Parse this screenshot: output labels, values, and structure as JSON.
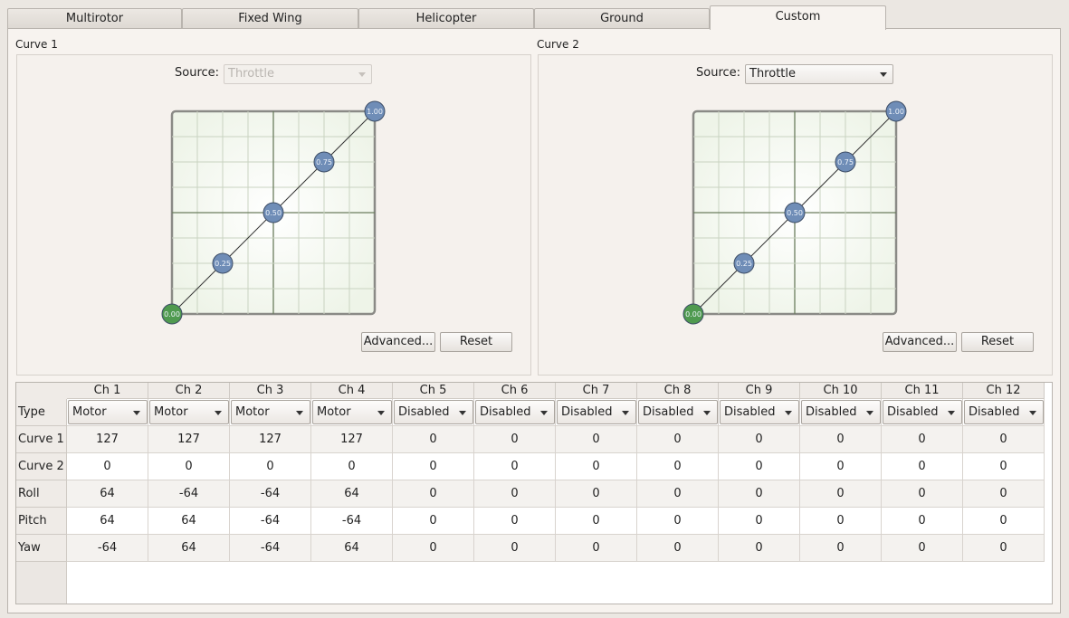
{
  "tabs": [
    "Multirotor",
    "Fixed Wing",
    "Helicopter",
    "Ground",
    "Custom"
  ],
  "active_tab": "Custom",
  "curve1": {
    "title": "Curve 1",
    "source_label": "Source:",
    "source_value": "Throttle",
    "source_enabled": false,
    "points": [
      "0.00",
      "0.25",
      "0.50",
      "0.75",
      "1.00"
    ],
    "advanced_label": "Advanced...",
    "reset_label": "Reset"
  },
  "curve2": {
    "title": "Curve 2",
    "source_label": "Source:",
    "source_value": "Throttle",
    "source_enabled": true,
    "points": [
      "0.00",
      "0.25",
      "0.50",
      "0.75",
      "1.00"
    ],
    "advanced_label": "Advanced...",
    "reset_label": "Reset"
  },
  "colors": {
    "point_blue": "#6f8db7",
    "point_green": "#4f9a4f",
    "grid_bg": "#eef4e8"
  },
  "mixer": {
    "columns": [
      "Ch 1",
      "Ch 2",
      "Ch 3",
      "Ch 4",
      "Ch 5",
      "Ch 6",
      "Ch 7",
      "Ch 8",
      "Ch 9",
      "Ch 10",
      "Ch 11",
      "Ch 12"
    ],
    "rows": [
      {
        "label": "Type",
        "values": [
          "Motor",
          "Motor",
          "Motor",
          "Motor",
          "Disabled",
          "Disabled",
          "Disabled",
          "Disabled",
          "Disabled",
          "Disabled",
          "Disabled",
          "Disabled"
        ]
      },
      {
        "label": "Curve 1",
        "values": [
          "127",
          "127",
          "127",
          "127",
          "0",
          "0",
          "0",
          "0",
          "0",
          "0",
          "0",
          "0"
        ]
      },
      {
        "label": "Curve 2",
        "values": [
          "0",
          "0",
          "0",
          "0",
          "0",
          "0",
          "0",
          "0",
          "0",
          "0",
          "0",
          "0"
        ]
      },
      {
        "label": "Roll",
        "values": [
          "64",
          "-64",
          "-64",
          "64",
          "0",
          "0",
          "0",
          "0",
          "0",
          "0",
          "0",
          "0"
        ]
      },
      {
        "label": "Pitch",
        "values": [
          "64",
          "64",
          "-64",
          "-64",
          "0",
          "0",
          "0",
          "0",
          "0",
          "0",
          "0",
          "0"
        ]
      },
      {
        "label": "Yaw",
        "values": [
          "-64",
          "64",
          "-64",
          "64",
          "0",
          "0",
          "0",
          "0",
          "0",
          "0",
          "0",
          "0"
        ]
      }
    ]
  }
}
